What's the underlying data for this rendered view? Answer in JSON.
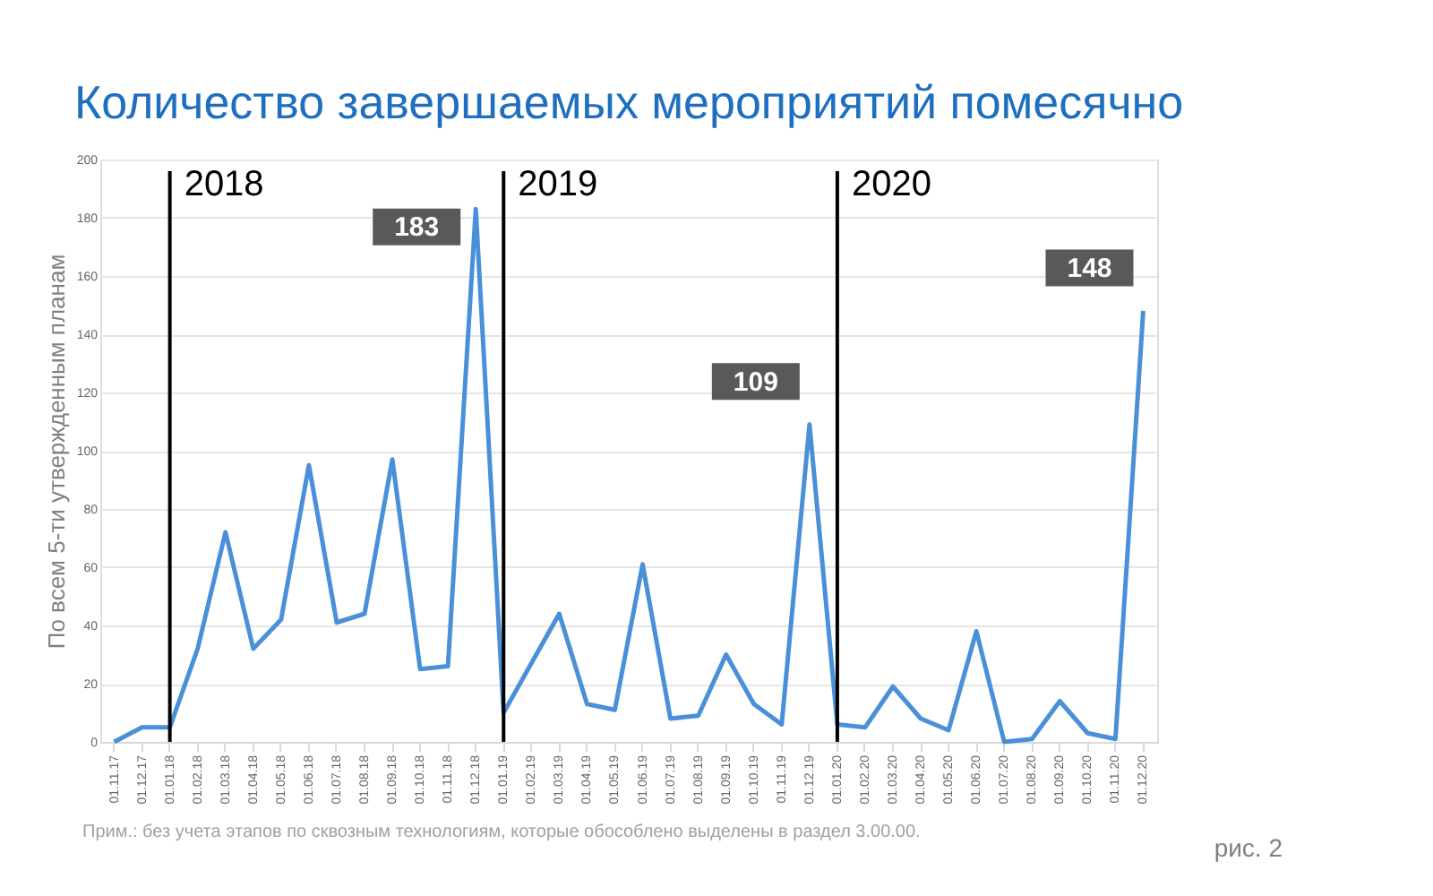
{
  "chart_data": {
    "type": "line",
    "title": "Количество завершаемых мероприятий помесячно",
    "ylabel": "По всем 5-ти утвержденным планам",
    "categories": [
      "01.11.17",
      "01.12.17",
      "01.01.18",
      "01.02.18",
      "01.03.18",
      "01.04.18",
      "01.05.18",
      "01.06.18",
      "01.07.18",
      "01.08.18",
      "01.09.18",
      "01.10.18",
      "01.11.18",
      "01.12.18",
      "01.01.19",
      "01.02.19",
      "01.03.19",
      "01.04.19",
      "01.05.19",
      "01.06.19",
      "01.07.19",
      "01.08.19",
      "01.09.19",
      "01.10.19",
      "01.11.19",
      "01.12.19",
      "01.01.20",
      "01.02.20",
      "01.03.20",
      "01.04.20",
      "01.05.20",
      "01.06.20",
      "01.07.20",
      "01.08.20",
      "01.09.20",
      "01.10.20",
      "01.11.20",
      "01.12.20"
    ],
    "series": [
      {
        "color": "#4a90d9",
        "values": [
          0,
          5,
          5,
          32,
          72,
          32,
          42,
          95,
          41,
          44,
          97,
          25,
          26,
          183,
          10,
          27,
          44,
          13,
          11,
          61,
          8,
          9,
          30,
          13,
          6,
          109,
          6,
          5,
          19,
          8,
          4,
          38,
          0,
          1,
          14,
          3,
          1,
          148
        ],
        "value_labels": [
          null,
          null,
          null,
          null,
          null,
          null,
          null,
          null,
          null,
          null,
          null,
          null,
          null,
          "183",
          null,
          null,
          null,
          null,
          null,
          null,
          null,
          null,
          null,
          null,
          null,
          "109",
          null,
          null,
          null,
          null,
          null,
          null,
          null,
          null,
          null,
          null,
          null,
          "148"
        ]
      }
    ],
    "ylim": [
      0,
      200
    ],
    "yticks": [
      0,
      20,
      40,
      60,
      80,
      100,
      120,
      140,
      160,
      180,
      200
    ],
    "grid": "y",
    "marker": "none",
    "line_style": "solid",
    "ref_lines": [
      {
        "axis": "x",
        "value": "01.01.18",
        "color": "#000000",
        "label": "2018"
      },
      {
        "axis": "x",
        "value": "01.01.19",
        "color": "#000000",
        "label": "2019"
      },
      {
        "axis": "x",
        "value": "01.01.20",
        "color": "#000000",
        "label": "2020"
      }
    ],
    "annotations": [
      "Прим.: без учета этапов по сквозным технологиям, которые обособлено выделены в раздел 3.00.00.",
      "рис. 2"
    ]
  }
}
